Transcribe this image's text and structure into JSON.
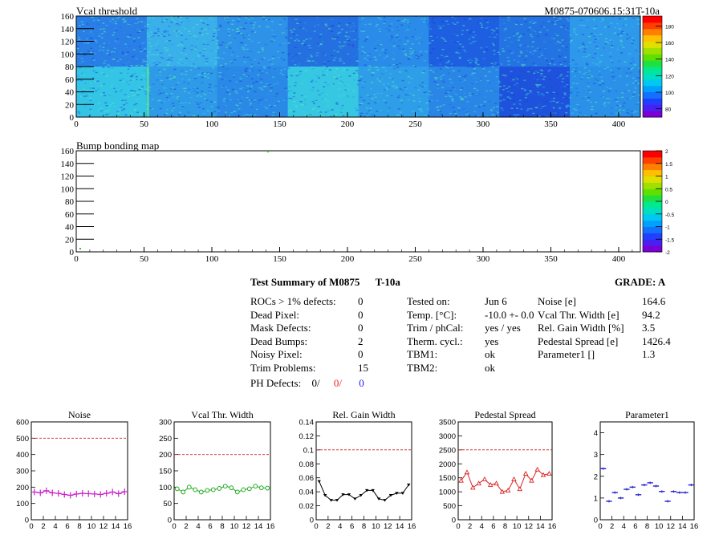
{
  "top_panel": {
    "title": "Vcal threshold",
    "module_label": "M0875-070606.15:31T-10a",
    "x_ticks": [
      "0",
      "50",
      "100",
      "150",
      "200",
      "250",
      "300",
      "350",
      "400"
    ],
    "y_ticks": [
      "0",
      "20",
      "40",
      "60",
      "80",
      "100",
      "120",
      "140",
      "160"
    ],
    "palette_ticks": [
      "80",
      "100",
      "120",
      "140",
      "160",
      "180"
    ],
    "colors": {
      "low": "#1e4ee0",
      "mid": "#22a6f0",
      "high": "#39e6d6",
      "hot": "#6af07a"
    }
  },
  "bump_panel": {
    "title": "Bump bonding map",
    "x_ticks": [
      "0",
      "50",
      "100",
      "150",
      "200",
      "250",
      "300",
      "350",
      "400"
    ],
    "y_ticks": [
      "0",
      "20",
      "40",
      "60",
      "80",
      "100",
      "120",
      "140",
      "160"
    ],
    "palette_ticks": [
      "-2",
      "-1.5",
      "-1",
      "-0.5",
      "0",
      "0.5",
      "1",
      "1.5",
      "2"
    ]
  },
  "summary": {
    "title": "Test Summary of M0875",
    "test_id": "T-10a",
    "grade_label": "GRADE:",
    "grade": "A",
    "left_labels": [
      "ROCs > 1% defects:",
      "Dead Pixel:",
      "Mask Defects:",
      "Dead Bumps:",
      "Noisy Pixel:",
      "Trim Problems:"
    ],
    "left_values": [
      "0",
      "0",
      "0",
      "2",
      "0",
      "15"
    ],
    "ph_label": "PH Defects:",
    "ph_values": [
      "0/",
      "0/",
      "0"
    ],
    "mid_labels": [
      "Tested on:",
      "Temp. [°C]:",
      "Trim / phCal:",
      "Therm. cycl.:",
      "TBM1:",
      "TBM2:"
    ],
    "mid_values": [
      "Jun 6",
      "-10.0 +- 0.0",
      "yes / yes",
      "yes",
      "ok",
      "ok"
    ],
    "right_labels": [
      "Noise [e]",
      "Vcal Thr. Width [e]",
      "Rel. Gain Width [%]",
      "Pedestal Spread [e]",
      "Parameter1 []"
    ],
    "right_values": [
      "164.6",
      "94.2",
      "3.5",
      "1426.4",
      "1.3"
    ]
  },
  "chart_data": [
    {
      "type": "line",
      "title": "Noise",
      "x": [
        0,
        1,
        2,
        3,
        4,
        5,
        6,
        7,
        8,
        9,
        10,
        11,
        12,
        13,
        14,
        15
      ],
      "values": [
        170,
        165,
        178,
        165,
        162,
        155,
        150,
        158,
        162,
        160,
        158,
        155,
        162,
        170,
        160,
        172
      ],
      "ylim": [
        0,
        600
      ],
      "yticks": [
        0,
        100,
        200,
        300,
        400,
        500,
        600
      ],
      "ref_line": 500,
      "color": "#cc22cc",
      "marker": "cross"
    },
    {
      "type": "line",
      "title": "Vcal Thr. Width",
      "x": [
        0,
        1,
        2,
        3,
        4,
        5,
        6,
        7,
        8,
        9,
        10,
        11,
        12,
        13,
        14,
        15
      ],
      "values": [
        95,
        85,
        100,
        92,
        85,
        90,
        92,
        96,
        103,
        98,
        85,
        92,
        95,
        103,
        98,
        97
      ],
      "ylim": [
        0,
        300
      ],
      "yticks": [
        0,
        50,
        100,
        150,
        200,
        250,
        300
      ],
      "ref_line": 200,
      "color": "#22aa22",
      "marker": "circle"
    },
    {
      "type": "line",
      "title": "Rel. Gain Width",
      "x": [
        0,
        1,
        2,
        3,
        4,
        5,
        6,
        7,
        8,
        9,
        10,
        11,
        12,
        13,
        14,
        15
      ],
      "values": [
        0.055,
        0.035,
        0.028,
        0.028,
        0.036,
        0.036,
        0.03,
        0.035,
        0.042,
        0.042,
        0.03,
        0.028,
        0.035,
        0.038,
        0.038,
        0.05
      ],
      "ylim": [
        0,
        0.14
      ],
      "yticks": [
        0,
        0.02,
        0.04,
        0.06,
        0.08,
        0.1,
        0.12,
        0.14
      ],
      "ref_line": 0.1,
      "color": "#000000",
      "marker": "triangle"
    },
    {
      "type": "line",
      "title": "Pedestal Spread",
      "x": [
        0,
        1,
        2,
        3,
        4,
        5,
        6,
        7,
        8,
        9,
        10,
        11,
        12,
        13,
        14,
        15
      ],
      "values": [
        1400,
        1700,
        1150,
        1300,
        1450,
        1250,
        1300,
        1000,
        1050,
        1450,
        1100,
        1650,
        1400,
        1800,
        1600,
        1650
      ],
      "ylim": [
        0,
        3500
      ],
      "yticks": [
        0,
        500,
        1000,
        1500,
        2000,
        2500,
        3000,
        3500
      ],
      "ref_line": 2500,
      "color": "#dd2222",
      "marker": "triangle-open"
    },
    {
      "type": "scatter",
      "title": "Parameter1",
      "x": [
        0,
        1,
        2,
        3,
        4,
        5,
        6,
        7,
        8,
        9,
        10,
        11,
        12,
        13,
        14,
        15
      ],
      "values": [
        2.35,
        0.85,
        1.25,
        1.0,
        1.4,
        1.5,
        1.15,
        1.6,
        1.7,
        1.55,
        1.3,
        0.85,
        1.3,
        1.25,
        1.25,
        1.6
      ],
      "ylim": [
        0,
        4.5
      ],
      "yticks": [
        0,
        1,
        2,
        3,
        4
      ],
      "ref_line": null,
      "color": "#2222cc",
      "marker": "hbar"
    }
  ]
}
